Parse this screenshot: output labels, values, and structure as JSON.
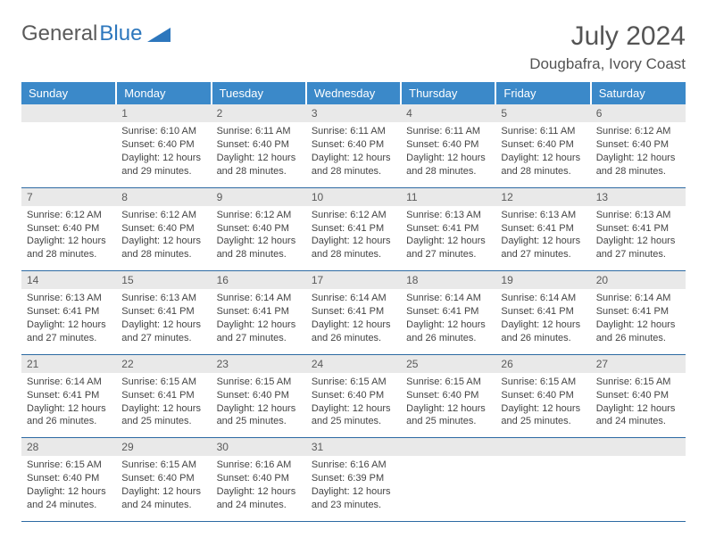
{
  "brand": {
    "word1": "General",
    "word2": "Blue",
    "word1_color": "#5a5a5a",
    "word2_color": "#2d77bd",
    "triangle_color": "#2d77bd"
  },
  "title": "July 2024",
  "location": "Dougbafra, Ivory Coast",
  "colors": {
    "header_bg": "#3b89c9",
    "header_text": "#ffffff",
    "daynum_bg": "#e9e9e9",
    "rule": "#2d6aa3",
    "body_text": "#444444",
    "title_text": "#545454",
    "page_bg": "#ffffff"
  },
  "typography": {
    "title_fontsize": 30,
    "location_fontsize": 17,
    "dow_fontsize": 13,
    "daynum_fontsize": 12,
    "detail_fontsize": 11
  },
  "days_of_week": [
    "Sunday",
    "Monday",
    "Tuesday",
    "Wednesday",
    "Thursday",
    "Friday",
    "Saturday"
  ],
  "weeks": [
    [
      null,
      {
        "n": "1",
        "sr": "Sunrise: 6:10 AM",
        "ss": "Sunset: 6:40 PM",
        "dl": "Daylight: 12 hours and 29 minutes."
      },
      {
        "n": "2",
        "sr": "Sunrise: 6:11 AM",
        "ss": "Sunset: 6:40 PM",
        "dl": "Daylight: 12 hours and 28 minutes."
      },
      {
        "n": "3",
        "sr": "Sunrise: 6:11 AM",
        "ss": "Sunset: 6:40 PM",
        "dl": "Daylight: 12 hours and 28 minutes."
      },
      {
        "n": "4",
        "sr": "Sunrise: 6:11 AM",
        "ss": "Sunset: 6:40 PM",
        "dl": "Daylight: 12 hours and 28 minutes."
      },
      {
        "n": "5",
        "sr": "Sunrise: 6:11 AM",
        "ss": "Sunset: 6:40 PM",
        "dl": "Daylight: 12 hours and 28 minutes."
      },
      {
        "n": "6",
        "sr": "Sunrise: 6:12 AM",
        "ss": "Sunset: 6:40 PM",
        "dl": "Daylight: 12 hours and 28 minutes."
      }
    ],
    [
      {
        "n": "7",
        "sr": "Sunrise: 6:12 AM",
        "ss": "Sunset: 6:40 PM",
        "dl": "Daylight: 12 hours and 28 minutes."
      },
      {
        "n": "8",
        "sr": "Sunrise: 6:12 AM",
        "ss": "Sunset: 6:40 PM",
        "dl": "Daylight: 12 hours and 28 minutes."
      },
      {
        "n": "9",
        "sr": "Sunrise: 6:12 AM",
        "ss": "Sunset: 6:40 PM",
        "dl": "Daylight: 12 hours and 28 minutes."
      },
      {
        "n": "10",
        "sr": "Sunrise: 6:12 AM",
        "ss": "Sunset: 6:41 PM",
        "dl": "Daylight: 12 hours and 28 minutes."
      },
      {
        "n": "11",
        "sr": "Sunrise: 6:13 AM",
        "ss": "Sunset: 6:41 PM",
        "dl": "Daylight: 12 hours and 27 minutes."
      },
      {
        "n": "12",
        "sr": "Sunrise: 6:13 AM",
        "ss": "Sunset: 6:41 PM",
        "dl": "Daylight: 12 hours and 27 minutes."
      },
      {
        "n": "13",
        "sr": "Sunrise: 6:13 AM",
        "ss": "Sunset: 6:41 PM",
        "dl": "Daylight: 12 hours and 27 minutes."
      }
    ],
    [
      {
        "n": "14",
        "sr": "Sunrise: 6:13 AM",
        "ss": "Sunset: 6:41 PM",
        "dl": "Daylight: 12 hours and 27 minutes."
      },
      {
        "n": "15",
        "sr": "Sunrise: 6:13 AM",
        "ss": "Sunset: 6:41 PM",
        "dl": "Daylight: 12 hours and 27 minutes."
      },
      {
        "n": "16",
        "sr": "Sunrise: 6:14 AM",
        "ss": "Sunset: 6:41 PM",
        "dl": "Daylight: 12 hours and 27 minutes."
      },
      {
        "n": "17",
        "sr": "Sunrise: 6:14 AM",
        "ss": "Sunset: 6:41 PM",
        "dl": "Daylight: 12 hours and 26 minutes."
      },
      {
        "n": "18",
        "sr": "Sunrise: 6:14 AM",
        "ss": "Sunset: 6:41 PM",
        "dl": "Daylight: 12 hours and 26 minutes."
      },
      {
        "n": "19",
        "sr": "Sunrise: 6:14 AM",
        "ss": "Sunset: 6:41 PM",
        "dl": "Daylight: 12 hours and 26 minutes."
      },
      {
        "n": "20",
        "sr": "Sunrise: 6:14 AM",
        "ss": "Sunset: 6:41 PM",
        "dl": "Daylight: 12 hours and 26 minutes."
      }
    ],
    [
      {
        "n": "21",
        "sr": "Sunrise: 6:14 AM",
        "ss": "Sunset: 6:41 PM",
        "dl": "Daylight: 12 hours and 26 minutes."
      },
      {
        "n": "22",
        "sr": "Sunrise: 6:15 AM",
        "ss": "Sunset: 6:41 PM",
        "dl": "Daylight: 12 hours and 25 minutes."
      },
      {
        "n": "23",
        "sr": "Sunrise: 6:15 AM",
        "ss": "Sunset: 6:40 PM",
        "dl": "Daylight: 12 hours and 25 minutes."
      },
      {
        "n": "24",
        "sr": "Sunrise: 6:15 AM",
        "ss": "Sunset: 6:40 PM",
        "dl": "Daylight: 12 hours and 25 minutes."
      },
      {
        "n": "25",
        "sr": "Sunrise: 6:15 AM",
        "ss": "Sunset: 6:40 PM",
        "dl": "Daylight: 12 hours and 25 minutes."
      },
      {
        "n": "26",
        "sr": "Sunrise: 6:15 AM",
        "ss": "Sunset: 6:40 PM",
        "dl": "Daylight: 12 hours and 25 minutes."
      },
      {
        "n": "27",
        "sr": "Sunrise: 6:15 AM",
        "ss": "Sunset: 6:40 PM",
        "dl": "Daylight: 12 hours and 24 minutes."
      }
    ],
    [
      {
        "n": "28",
        "sr": "Sunrise: 6:15 AM",
        "ss": "Sunset: 6:40 PM",
        "dl": "Daylight: 12 hours and 24 minutes."
      },
      {
        "n": "29",
        "sr": "Sunrise: 6:15 AM",
        "ss": "Sunset: 6:40 PM",
        "dl": "Daylight: 12 hours and 24 minutes."
      },
      {
        "n": "30",
        "sr": "Sunrise: 6:16 AM",
        "ss": "Sunset: 6:40 PM",
        "dl": "Daylight: 12 hours and 24 minutes."
      },
      {
        "n": "31",
        "sr": "Sunrise: 6:16 AM",
        "ss": "Sunset: 6:39 PM",
        "dl": "Daylight: 12 hours and 23 minutes."
      },
      null,
      null,
      null
    ]
  ]
}
